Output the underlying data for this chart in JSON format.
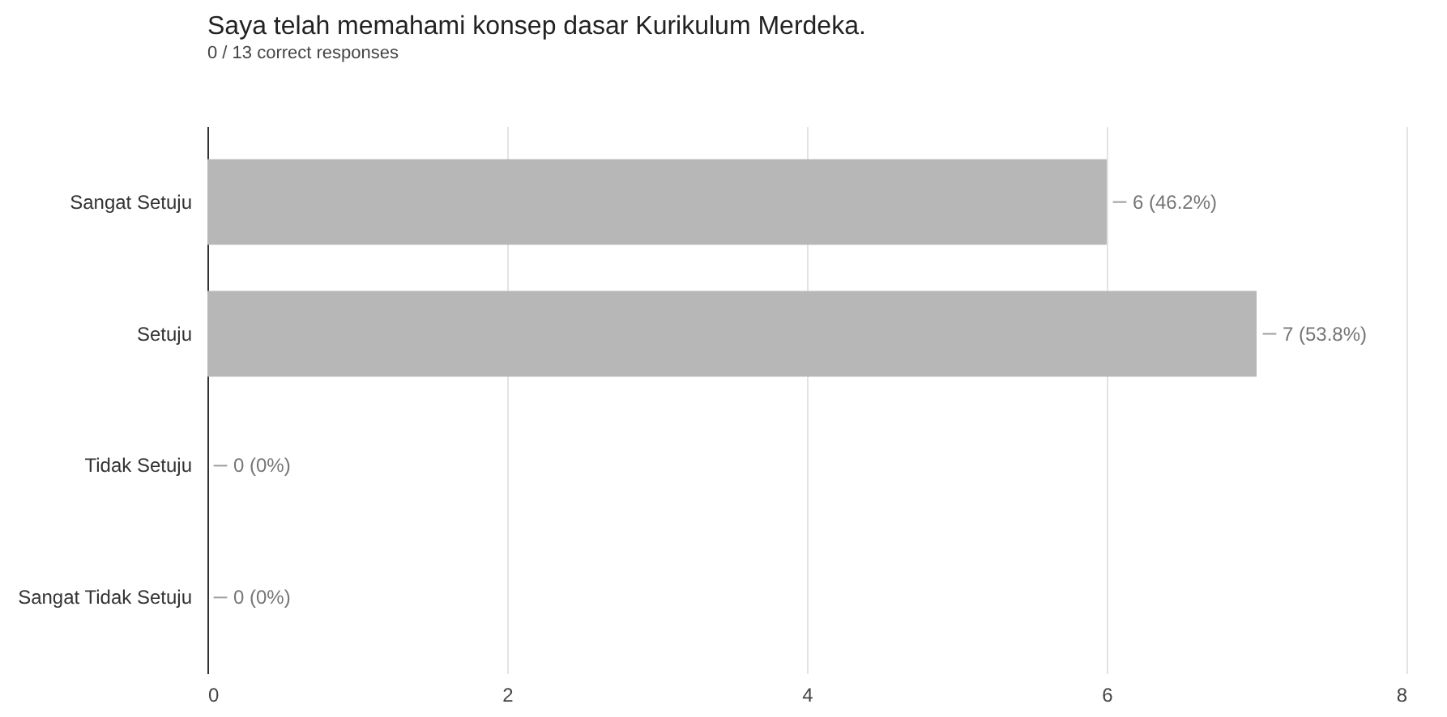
{
  "chart_data": {
    "type": "bar",
    "orientation": "horizontal",
    "title": "Saya telah memahami konsep dasar Kurikulum Merdeka.",
    "subtitle": "0 / 13 correct responses",
    "categories": [
      "Sangat Setuju",
      "Setuju",
      "Tidak Setuju",
      "Sangat Tidak Setuju"
    ],
    "values": [
      6,
      7,
      0,
      0
    ],
    "color": "#b7b7b7",
    "value_labels": [
      "6 (46.2%)",
      "7 (53.8%)",
      "0 (0%)",
      "0 (0%)"
    ],
    "xlim": [
      0,
      8
    ],
    "xticks": [
      0,
      2,
      4,
      6,
      8
    ],
    "grid": "x"
  }
}
